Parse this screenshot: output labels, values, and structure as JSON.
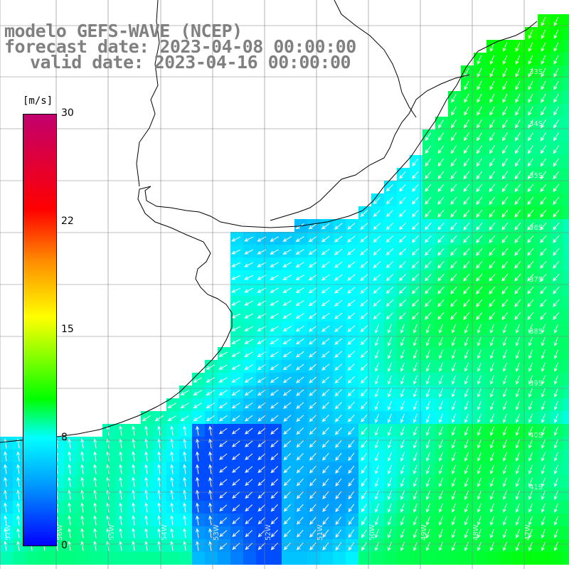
{
  "title": {
    "line1": "modelo GEFS-WAVE (NCEP)",
    "line2": "forecast date: 2023-04-08 00:00:00",
    "line3": "valid date: 2023-04-16 00:00:00"
  },
  "colorbar": {
    "unit": "[m/s]",
    "ticks": [
      "30",
      "22",
      "15",
      "8",
      "0"
    ],
    "tick_values": [
      30,
      22,
      15,
      8,
      0
    ],
    "colors": [
      "#0000ff",
      "#0099ff",
      "#00ffff",
      "#00ff00",
      "#7cff00",
      "#ffff00",
      "#ff8c00",
      "#ff0000",
      "#c2006e"
    ]
  },
  "lat_labels": [
    "33S",
    "34S",
    "35S",
    "36S",
    "37S",
    "38S",
    "39S",
    "40S",
    "41S"
  ],
  "lon_labels": [
    "57W",
    "56W",
    "55W",
    "54W",
    "53W",
    "52W",
    "51W",
    "50W",
    "49W",
    "48W",
    "47W"
  ],
  "colors": {
    "land": "#ffffff",
    "coast": "#000000",
    "grid": "#808080",
    "arrow": "#ffffff"
  }
}
